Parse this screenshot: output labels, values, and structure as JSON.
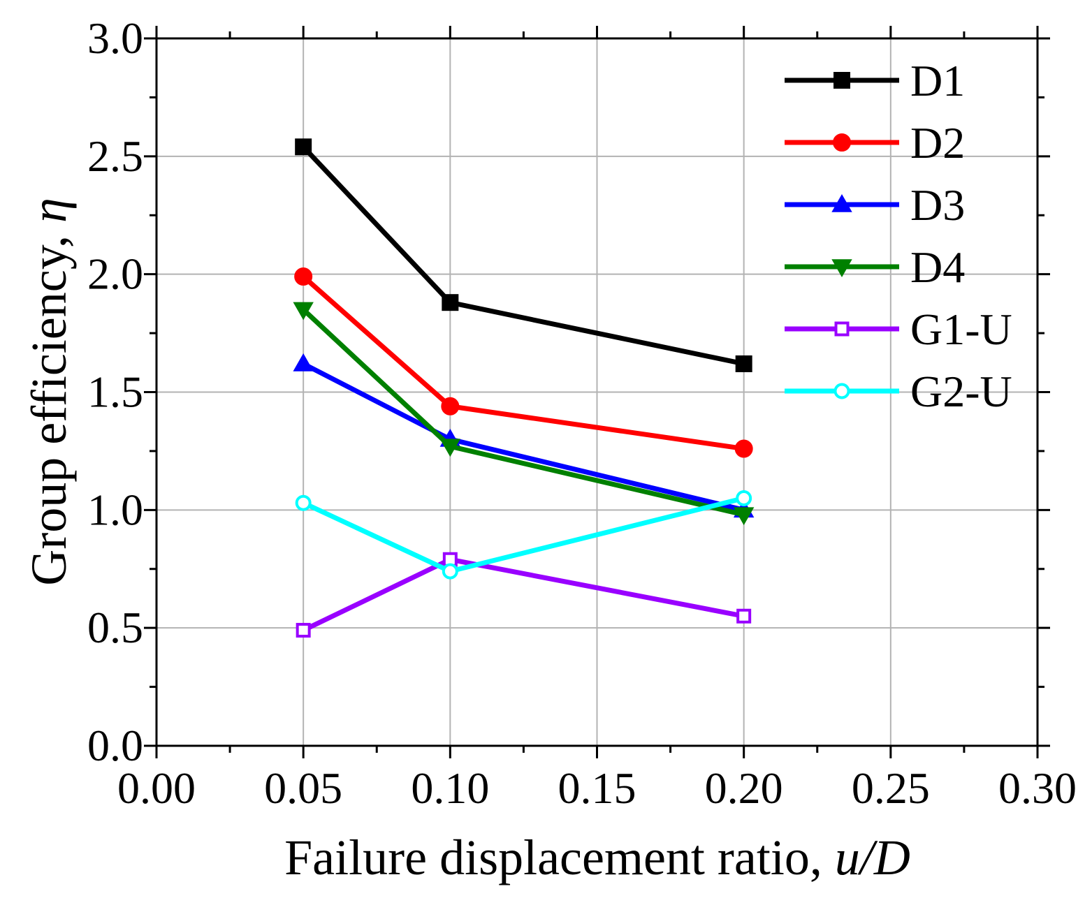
{
  "chart_data": {
    "type": "line",
    "title": "",
    "xlabel_prefix": "Failure displacement ratio, ",
    "xlabel_var": "u/D",
    "ylabel_prefix": "Group efficiency, ",
    "ylabel_var": "η",
    "xlim": [
      0.0,
      0.3
    ],
    "ylim": [
      0.0,
      3.0
    ],
    "x_ticks": [
      {
        "value": 0.0,
        "label": "0.00"
      },
      {
        "value": 0.05,
        "label": "0.05"
      },
      {
        "value": 0.1,
        "label": "0.10"
      },
      {
        "value": 0.15,
        "label": "0.15"
      },
      {
        "value": 0.2,
        "label": "0.20"
      },
      {
        "value": 0.25,
        "label": "0.25"
      },
      {
        "value": 0.3,
        "label": "0.30"
      }
    ],
    "y_ticks": [
      {
        "value": 0.0,
        "label": "0.0"
      },
      {
        "value": 0.5,
        "label": "0.5"
      },
      {
        "value": 1.0,
        "label": "1.0"
      },
      {
        "value": 1.5,
        "label": "1.5"
      },
      {
        "value": 2.0,
        "label": "2.0"
      },
      {
        "value": 2.5,
        "label": "2.5"
      },
      {
        "value": 3.0,
        "label": "3.0"
      }
    ],
    "grid": true,
    "legend_position": "top-right",
    "series": [
      {
        "name": "D1",
        "color": "#000000",
        "marker": "square",
        "filled": true,
        "x": [
          0.05,
          0.1,
          0.2
        ],
        "y": [
          2.54,
          1.88,
          1.62
        ]
      },
      {
        "name": "D2",
        "color": "#ff0000",
        "marker": "circle",
        "filled": true,
        "x": [
          0.05,
          0.1,
          0.2
        ],
        "y": [
          1.99,
          1.44,
          1.26
        ]
      },
      {
        "name": "D3",
        "color": "#0000ff",
        "marker": "triangle-up",
        "filled": true,
        "x": [
          0.05,
          0.1,
          0.2
        ],
        "y": [
          1.62,
          1.3,
          1.0
        ]
      },
      {
        "name": "D4",
        "color": "#008000",
        "marker": "triangle-down",
        "filled": true,
        "x": [
          0.05,
          0.1,
          0.2
        ],
        "y": [
          1.85,
          1.27,
          0.98
        ]
      },
      {
        "name": "G1-U",
        "color": "#9900ff",
        "marker": "square",
        "filled": false,
        "x": [
          0.05,
          0.1,
          0.2
        ],
        "y": [
          0.49,
          0.79,
          0.55
        ]
      },
      {
        "name": "G2-U",
        "color": "#00ffff",
        "marker": "circle",
        "filled": false,
        "x": [
          0.05,
          0.1,
          0.2
        ],
        "y": [
          1.03,
          0.74,
          1.05
        ]
      }
    ]
  }
}
